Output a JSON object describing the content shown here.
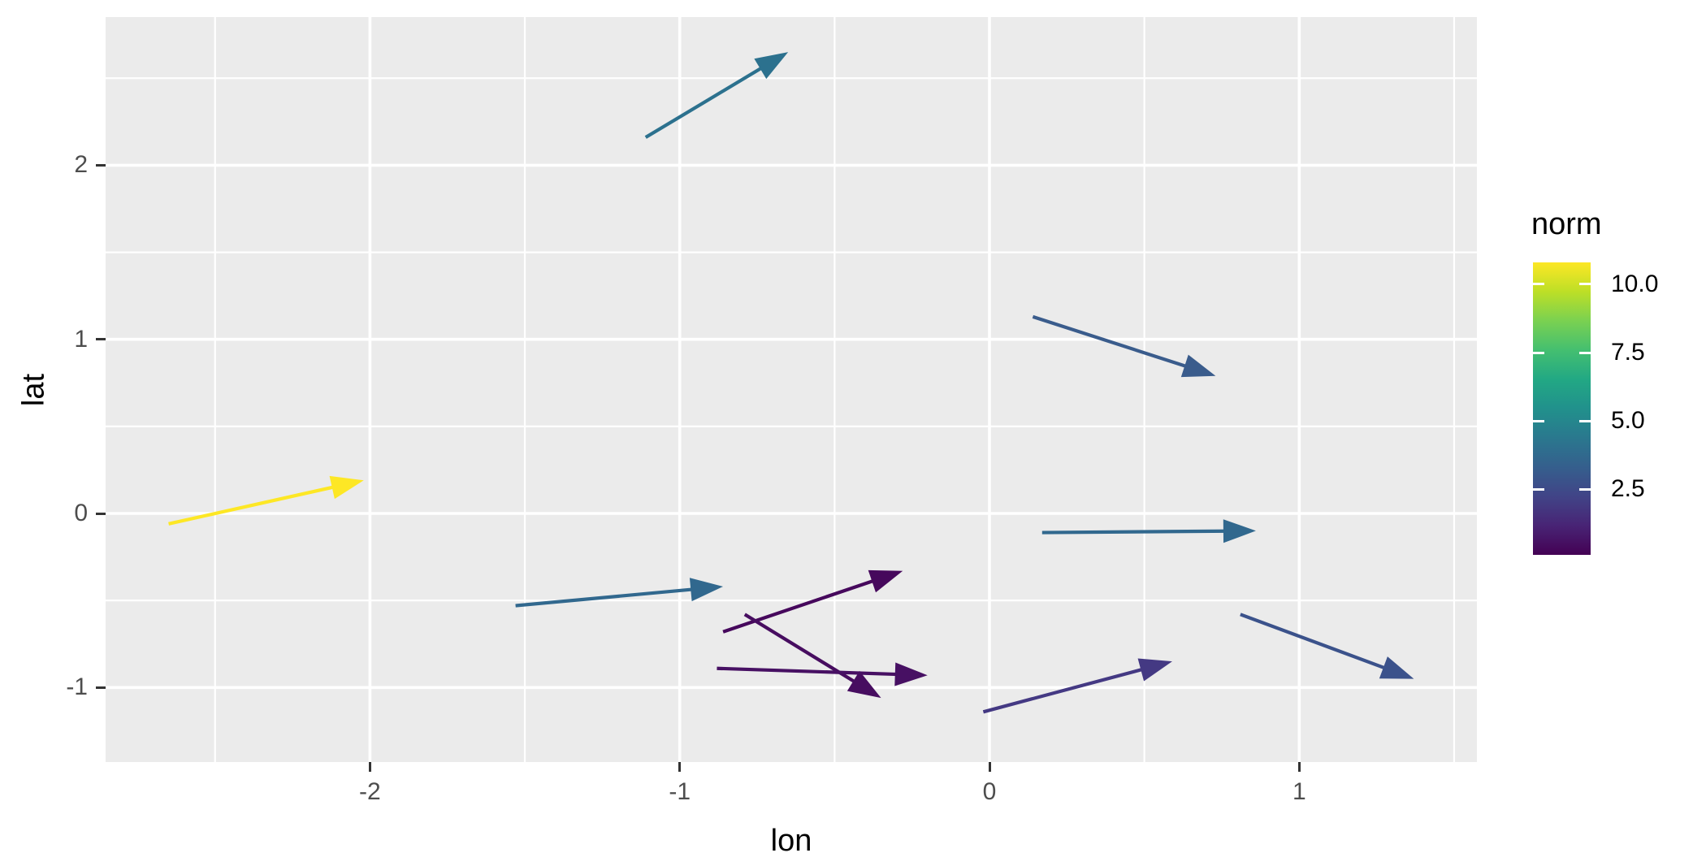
{
  "figure": {
    "background": "#FFFFFF"
  },
  "panel": {
    "background": "#EBEBEB",
    "grid_major_color": "#FFFFFF",
    "grid_minor_color": "#FFFFFF"
  },
  "axes": {
    "tick_color": "#333333",
    "tick_label_color": "#4D4D4D",
    "title_color": "#000000",
    "x": {
      "title": "lon",
      "tick_values": [
        -2,
        -1,
        0,
        1
      ],
      "tick_labels": [
        "-2",
        "-1",
        "0",
        "1"
      ],
      "minor_values": [
        -2.5,
        -1.5,
        -0.5,
        0.5,
        1.5
      ],
      "range": [
        -2.85,
        1.57
      ]
    },
    "y": {
      "title": "lat",
      "tick_values": [
        2,
        1,
        0,
        -1
      ],
      "tick_labels": [
        "2",
        "1",
        "0",
        "-1"
      ],
      "minor_values": [
        2.5,
        1.5,
        0.5,
        -0.5
      ],
      "range": [
        -1.43,
        2.85
      ]
    }
  },
  "legend": {
    "title": "norm",
    "entries": [
      {
        "label": "10.0",
        "value": 10.0
      },
      {
        "label": "7.5",
        "value": 7.5
      },
      {
        "label": "5.0",
        "value": 5.0
      },
      {
        "label": "2.5",
        "value": 2.5
      }
    ],
    "gradient_colors": [
      "#FDE725",
      "#BDDF26",
      "#7AD151",
      "#44BF70",
      "#22A884",
      "#21918C",
      "#2A788E",
      "#355F8D",
      "#414487",
      "#482475",
      "#440154"
    ],
    "scale_min": 0.1,
    "scale_max": 10.8
  },
  "chart_data": {
    "type": "vector_field",
    "title": "",
    "xlabel": "lon",
    "ylabel": "lat",
    "xlim": [
      -2.85,
      1.57
    ],
    "ylim": [
      -1.43,
      2.85
    ],
    "grid": true,
    "legend_position": "right",
    "color_scale": {
      "name": "viridis",
      "variable": "norm",
      "min": 0.1,
      "max": 10.8
    },
    "arrows": [
      {
        "x1": -1.11,
        "y1": 2.16,
        "x2": -0.65,
        "y2": 2.65,
        "norm": 4.8,
        "color": "#2C718E"
      },
      {
        "x1": 0.14,
        "y1": 1.13,
        "x2": 0.73,
        "y2": 0.79,
        "norm": 3.4,
        "color": "#3A5C8C"
      },
      {
        "x1": -2.65,
        "y1": -0.06,
        "x2": -2.02,
        "y2": 0.19,
        "norm": 10.8,
        "color": "#FDE725"
      },
      {
        "x1": -1.53,
        "y1": -0.53,
        "x2": -0.86,
        "y2": -0.42,
        "norm": 4.3,
        "color": "#31688E"
      },
      {
        "x1": 0.17,
        "y1": -0.11,
        "x2": 0.86,
        "y2": -0.1,
        "norm": 4.4,
        "color": "#31688E"
      },
      {
        "x1": -0.86,
        "y1": -0.68,
        "x2": -0.28,
        "y2": -0.33,
        "norm": 0.7,
        "color": "#46085C"
      },
      {
        "x1": -0.79,
        "y1": -0.58,
        "x2": -0.35,
        "y2": -1.06,
        "norm": 0.9,
        "color": "#470D60"
      },
      {
        "x1": -0.88,
        "y1": -0.89,
        "x2": -0.2,
        "y2": -0.93,
        "norm": 1.0,
        "color": "#471063"
      },
      {
        "x1": -0.02,
        "y1": -1.14,
        "x2": 0.59,
        "y2": -0.85,
        "norm": 2.2,
        "color": "#443983"
      },
      {
        "x1": 0.81,
        "y1": -0.58,
        "x2": 1.37,
        "y2": -0.95,
        "norm": 3.0,
        "color": "#3B528B"
      }
    ]
  }
}
